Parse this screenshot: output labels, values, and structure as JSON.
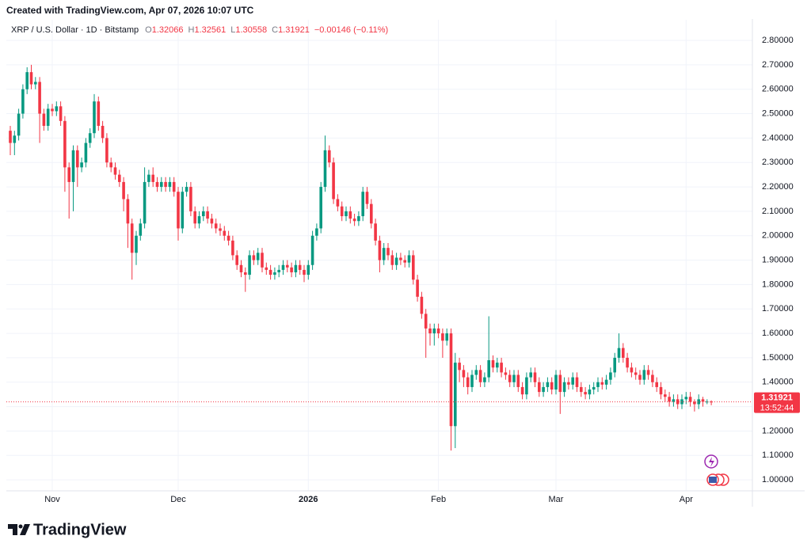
{
  "watermark": "Created with TradingView.com, Apr 07, 2026 10:07 UTC",
  "header": {
    "symbol": "XRP / U.S. Dollar · 1D · Bitstamp",
    "o": "O",
    "h": "H",
    "l": "L",
    "c": "C",
    "change": "−0.00146 (−0.11%)"
  },
  "footer": {
    "brand": "TradingView"
  },
  "chart_data": {
    "type": "candlestick",
    "categories": [
      null,
      null,
      null,
      null,
      null,
      null,
      null,
      null,
      null,
      null,
      "Nov",
      null,
      null,
      null,
      null,
      null,
      null,
      null,
      null,
      null,
      null,
      null,
      null,
      null,
      null,
      null,
      null,
      null,
      null,
      null,
      null,
      null,
      null,
      null,
      null,
      null,
      null,
      null,
      null,
      null,
      "Dec",
      null,
      null,
      null,
      null,
      null,
      null,
      null,
      null,
      null,
      null,
      null,
      null,
      null,
      null,
      null,
      null,
      null,
      null,
      null,
      null,
      null,
      null,
      null,
      null,
      null,
      null,
      null,
      null,
      null,
      null,
      "2026",
      null,
      null,
      null,
      null,
      null,
      null,
      null,
      null,
      null,
      null,
      null,
      null,
      null,
      null,
      null,
      null,
      null,
      null,
      null,
      null,
      null,
      null,
      null,
      null,
      null,
      null,
      null,
      null,
      null,
      null,
      "Feb",
      null,
      null,
      null,
      null,
      null,
      null,
      null,
      null,
      null,
      null,
      null,
      null,
      null,
      null,
      null,
      null,
      null,
      null,
      null,
      null,
      null,
      null,
      null,
      null,
      null,
      null,
      null,
      "Mar",
      null,
      null,
      null,
      null,
      null,
      null,
      null,
      null,
      null,
      null,
      null,
      null,
      null,
      null,
      null,
      null,
      null,
      null,
      null,
      null,
      null,
      null,
      null,
      null,
      null,
      null,
      null,
      null,
      null,
      null,
      "Apr",
      null,
      null,
      null,
      null,
      null,
      null
    ],
    "open": [
      2.43,
      2.38,
      2.41,
      2.5,
      2.6,
      2.67,
      2.62,
      2.63,
      2.5,
      2.45,
      2.52,
      2.51,
      2.53,
      2.47,
      2.28,
      2.22,
      2.35,
      2.28,
      2.3,
      2.38,
      2.42,
      2.55,
      2.45,
      2.4,
      2.3,
      2.28,
      2.25,
      2.22,
      2.15,
      2.05,
      1.93,
      2.0,
      2.05,
      2.22,
      2.25,
      2.22,
      2.2,
      2.22,
      2.2,
      2.22,
      2.18,
      2.03,
      2.18,
      2.2,
      2.1,
      2.05,
      2.08,
      2.1,
      2.07,
      2.05,
      2.03,
      2.02,
      2.0,
      1.98,
      1.92,
      1.88,
      1.85,
      1.84,
      1.92,
      1.9,
      1.93,
      1.87,
      1.86,
      1.84,
      1.85,
      1.86,
      1.88,
      1.87,
      1.85,
      1.88,
      1.86,
      1.84,
      1.88,
      2.0,
      2.03,
      2.2,
      2.35,
      2.3,
      2.15,
      2.12,
      2.08,
      2.1,
      2.07,
      2.06,
      2.08,
      2.18,
      2.13,
      2.05,
      1.98,
      1.9,
      1.95,
      1.92,
      1.88,
      1.91,
      1.9,
      1.89,
      1.92,
      1.82,
      1.75,
      1.68,
      1.62,
      1.6,
      1.62,
      1.6,
      1.57,
      1.6,
      1.22,
      1.48,
      1.45,
      1.42,
      1.38,
      1.43,
      1.45,
      1.4,
      1.42,
      1.49,
      1.46,
      1.48,
      1.44,
      1.43,
      1.4,
      1.43,
      1.38,
      1.35,
      1.42,
      1.44,
      1.4,
      1.36,
      1.38,
      1.4,
      1.37,
      1.43,
      1.36,
      1.4,
      1.39,
      1.42,
      1.38,
      1.36,
      1.35,
      1.37,
      1.38,
      1.4,
      1.39,
      1.41,
      1.44,
      1.5,
      1.54,
      1.5,
      1.46,
      1.44,
      1.43,
      1.41,
      1.45,
      1.43,
      1.4,
      1.38,
      1.35,
      1.34,
      1.32,
      1.33,
      1.31,
      1.33,
      1.34,
      1.32,
      1.31,
      1.33,
      1.32,
      1.32066
    ],
    "high": [
      2.45,
      2.43,
      2.52,
      2.62,
      2.69,
      2.7,
      2.65,
      2.65,
      2.52,
      2.54,
      2.54,
      2.55,
      2.55,
      2.49,
      2.3,
      2.37,
      2.37,
      2.32,
      2.4,
      2.44,
      2.58,
      2.57,
      2.47,
      2.42,
      2.32,
      2.3,
      2.27,
      2.24,
      2.17,
      2.07,
      2.02,
      2.07,
      2.28,
      2.27,
      2.28,
      2.24,
      2.24,
      2.24,
      2.24,
      2.24,
      2.2,
      2.2,
      2.22,
      2.22,
      2.12,
      2.1,
      2.12,
      2.12,
      2.09,
      2.07,
      2.05,
      2.04,
      2.02,
      2.0,
      1.94,
      1.9,
      1.87,
      1.94,
      1.94,
      1.95,
      1.95,
      1.89,
      1.88,
      1.87,
      1.88,
      1.9,
      1.9,
      1.89,
      1.9,
      1.9,
      1.88,
      1.9,
      2.02,
      2.05,
      2.22,
      2.41,
      2.37,
      2.32,
      2.17,
      2.14,
      2.12,
      2.12,
      2.09,
      2.1,
      2.2,
      2.2,
      2.15,
      2.07,
      2.0,
      1.97,
      1.97,
      1.94,
      1.93,
      1.93,
      1.92,
      1.94,
      1.94,
      1.84,
      1.77,
      1.7,
      1.64,
      1.64,
      1.64,
      1.62,
      1.62,
      1.62,
      1.52,
      1.5,
      1.47,
      1.44,
      1.45,
      1.47,
      1.47,
      1.44,
      1.67,
      1.51,
      1.5,
      1.5,
      1.46,
      1.45,
      1.45,
      1.45,
      1.4,
      1.44,
      1.46,
      1.46,
      1.42,
      1.4,
      1.42,
      1.42,
      1.45,
      1.45,
      1.42,
      1.42,
      1.44,
      1.44,
      1.4,
      1.38,
      1.39,
      1.4,
      1.42,
      1.42,
      1.43,
      1.46,
      1.52,
      1.6,
      1.56,
      1.52,
      1.48,
      1.46,
      1.45,
      1.47,
      1.47,
      1.45,
      1.42,
      1.4,
      1.37,
      1.36,
      1.35,
      1.35,
      1.35,
      1.36,
      1.36,
      1.33,
      1.35,
      1.34,
      1.33,
      1.32561
    ],
    "low": [
      2.33,
      2.33,
      2.39,
      2.48,
      2.58,
      2.6,
      2.6,
      2.38,
      2.43,
      2.43,
      2.49,
      2.49,
      2.45,
      2.18,
      2.07,
      2.1,
      2.2,
      2.26,
      2.28,
      2.36,
      2.4,
      2.43,
      2.38,
      2.28,
      2.26,
      2.23,
      2.2,
      2.1,
      1.95,
      1.82,
      1.88,
      1.98,
      2.03,
      2.2,
      2.2,
      2.18,
      2.18,
      2.18,
      2.18,
      2.16,
      1.98,
      2.01,
      2.16,
      2.08,
      2.03,
      2.03,
      2.06,
      2.05,
      2.03,
      2.01,
      2.0,
      1.98,
      1.96,
      1.9,
      1.86,
      1.83,
      1.77,
      1.82,
      1.88,
      1.88,
      1.85,
      1.84,
      1.82,
      1.82,
      1.83,
      1.84,
      1.85,
      1.83,
      1.83,
      1.84,
      1.81,
      1.82,
      1.86,
      1.98,
      2.01,
      2.18,
      2.28,
      2.13,
      2.1,
      2.06,
      2.06,
      2.05,
      2.04,
      2.04,
      2.06,
      2.11,
      2.03,
      1.96,
      1.85,
      1.88,
      1.9,
      1.86,
      1.86,
      1.88,
      1.87,
      1.87,
      1.8,
      1.73,
      1.66,
      1.5,
      1.55,
      1.55,
      1.58,
      1.5,
      1.55,
      1.12,
      1.13,
      1.4,
      1.38,
      1.35,
      1.36,
      1.41,
      1.38,
      1.38,
      1.4,
      1.44,
      1.44,
      1.42,
      1.41,
      1.38,
      1.38,
      1.36,
      1.33,
      1.33,
      1.4,
      1.38,
      1.34,
      1.34,
      1.36,
      1.35,
      1.35,
      1.27,
      1.34,
      1.37,
      1.37,
      1.36,
      1.34,
      1.33,
      1.33,
      1.35,
      1.36,
      1.37,
      1.37,
      1.39,
      1.42,
      1.48,
      1.48,
      1.44,
      1.42,
      1.41,
      1.39,
      1.39,
      1.41,
      1.38,
      1.36,
      1.33,
      1.32,
      1.3,
      1.3,
      1.29,
      1.29,
      1.31,
      1.3,
      1.28,
      1.29,
      1.3,
      1.31,
      1.30558
    ],
    "close": [
      2.38,
      2.41,
      2.5,
      2.6,
      2.67,
      2.62,
      2.63,
      2.5,
      2.45,
      2.52,
      2.51,
      2.53,
      2.47,
      2.28,
      2.22,
      2.35,
      2.28,
      2.3,
      2.38,
      2.42,
      2.55,
      2.45,
      2.4,
      2.3,
      2.28,
      2.25,
      2.22,
      2.15,
      2.05,
      1.93,
      2.0,
      2.05,
      2.22,
      2.25,
      2.22,
      2.2,
      2.22,
      2.2,
      2.22,
      2.18,
      2.03,
      2.18,
      2.2,
      2.1,
      2.05,
      2.08,
      2.1,
      2.07,
      2.05,
      2.03,
      2.02,
      2.0,
      1.98,
      1.92,
      1.88,
      1.85,
      1.84,
      1.92,
      1.9,
      1.93,
      1.87,
      1.86,
      1.84,
      1.85,
      1.86,
      1.88,
      1.87,
      1.85,
      1.88,
      1.86,
      1.84,
      1.88,
      2.0,
      2.03,
      2.2,
      2.35,
      2.3,
      2.15,
      2.12,
      2.08,
      2.1,
      2.07,
      2.06,
      2.08,
      2.18,
      2.13,
      2.05,
      1.98,
      1.9,
      1.95,
      1.92,
      1.88,
      1.91,
      1.9,
      1.89,
      1.92,
      1.82,
      1.75,
      1.68,
      1.62,
      1.6,
      1.62,
      1.6,
      1.57,
      1.6,
      1.22,
      1.48,
      1.45,
      1.42,
      1.38,
      1.43,
      1.45,
      1.4,
      1.42,
      1.49,
      1.46,
      1.48,
      1.44,
      1.43,
      1.4,
      1.43,
      1.38,
      1.35,
      1.42,
      1.44,
      1.4,
      1.36,
      1.38,
      1.4,
      1.37,
      1.43,
      1.36,
      1.4,
      1.39,
      1.42,
      1.38,
      1.36,
      1.35,
      1.37,
      1.38,
      1.4,
      1.39,
      1.41,
      1.44,
      1.5,
      1.54,
      1.5,
      1.46,
      1.44,
      1.43,
      1.41,
      1.45,
      1.43,
      1.4,
      1.38,
      1.35,
      1.34,
      1.32,
      1.33,
      1.31,
      1.33,
      1.34,
      1.32,
      1.31,
      1.33,
      1.32,
      1.32066,
      1.31921
    ],
    "up_color": "#089981",
    "down_color": "#f23645",
    "ylim": [
      0.955,
      2.852
    ],
    "yticks": [
      {
        "value": 1.0,
        "label": "1.00000"
      },
      {
        "value": 1.1,
        "label": "1.10000"
      },
      {
        "value": 1.2,
        "label": "1.20000"
      },
      {
        "value": 1.3,
        "label": "1.30000"
      },
      {
        "value": 1.4,
        "label": "1.40000"
      },
      {
        "value": 1.5,
        "label": "1.50000"
      },
      {
        "value": 1.6,
        "label": "1.60000"
      },
      {
        "value": 1.7,
        "label": "1.70000"
      },
      {
        "value": 1.8,
        "label": "1.80000"
      },
      {
        "value": 1.9,
        "label": "1.90000"
      },
      {
        "value": 2.0,
        "label": "2.00000"
      },
      {
        "value": 2.1,
        "label": "2.10000"
      },
      {
        "value": 2.2,
        "label": "2.20000"
      },
      {
        "value": 2.3,
        "label": "2.30000"
      },
      {
        "value": 2.4,
        "label": "2.40000"
      },
      {
        "value": 2.5,
        "label": "2.50000"
      },
      {
        "value": 2.6,
        "label": "2.60000"
      },
      {
        "value": 2.7,
        "label": "2.70000"
      },
      {
        "value": 2.8,
        "label": "2.80000"
      }
    ],
    "grid": true,
    "countdown": "13:52:44"
  }
}
